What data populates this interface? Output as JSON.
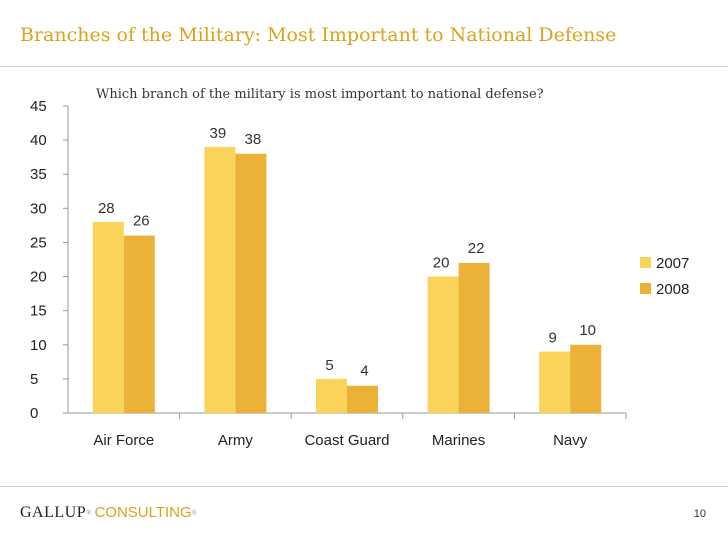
{
  "header": {
    "title": "Branches of the Military: Most Important to National Defense"
  },
  "footer": {
    "logo_main": "GALLUP",
    "logo_sub": "CONSULTING",
    "page_number": "10"
  },
  "colors": {
    "title": "#d9a31c",
    "series_2007": "#fad45a",
    "series_2008": "#ecb237"
  },
  "chart_data": {
    "type": "bar",
    "title": "Which branch of the military is most important to national defense?",
    "xlabel": "",
    "ylabel": "",
    "ylim": [
      0,
      45
    ],
    "yticks": [
      0,
      5,
      10,
      15,
      20,
      25,
      30,
      35,
      40,
      45
    ],
    "categories": [
      "Air Force",
      "Army",
      "Coast Guard",
      "Marines",
      "Navy"
    ],
    "series": [
      {
        "name": "2007",
        "values": [
          28,
          39,
          5,
          20,
          9
        ],
        "color": "#fad45a"
      },
      {
        "name": "2008",
        "values": [
          26,
          38,
          4,
          22,
          10
        ],
        "color": "#ecb237"
      }
    ],
    "grid": false,
    "legend": "right"
  }
}
